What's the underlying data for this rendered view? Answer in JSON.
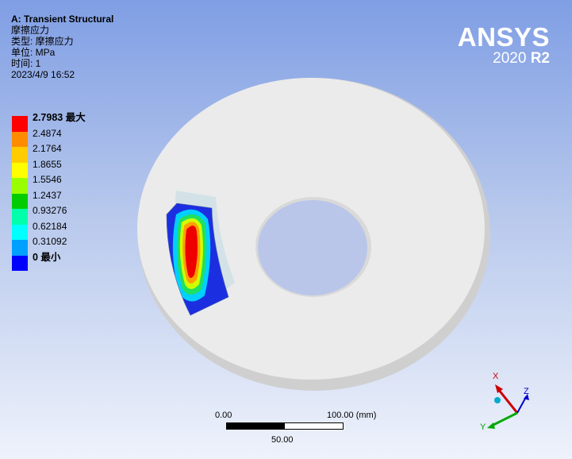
{
  "info": {
    "title": "A: Transient Structural",
    "result_name": "摩擦应力",
    "type_line": "类型: 摩擦应力",
    "unit_line": "单位: MPa",
    "time_line": "时间: 1",
    "date": "2023/4/9 16:52"
  },
  "legend": {
    "items": [
      {
        "label": "2.7983 最大",
        "color": "#ff0000",
        "strong": true
      },
      {
        "label": "2.4874",
        "color": "#ff8c00",
        "strong": false
      },
      {
        "label": "2.1764",
        "color": "#ffcc00",
        "strong": false
      },
      {
        "label": "1.8655",
        "color": "#ffff00",
        "strong": false
      },
      {
        "label": "1.5546",
        "color": "#99ff00",
        "strong": false
      },
      {
        "label": "1.2437",
        "color": "#00cc00",
        "strong": false
      },
      {
        "label": "0.93276",
        "color": "#00ffaa",
        "strong": false
      },
      {
        "label": "0.62184",
        "color": "#00ffff",
        "strong": false
      },
      {
        "label": "0.31092",
        "color": "#00a0ff",
        "strong": false
      },
      {
        "label": "0 最小",
        "color": "#0000ff",
        "strong": true
      }
    ]
  },
  "brand": {
    "name": "ANSYS",
    "version": "2020",
    "release": "R2"
  },
  "scale_bar": {
    "left_label": "0.00",
    "right_label": "100.00 (mm)",
    "mid_label": "50.00"
  },
  "triad": {
    "x_label": "X",
    "y_label": "Y",
    "z_label": "Z",
    "x_color": "#cc0000",
    "y_color": "#00aa00",
    "z_color": "#0000cc",
    "origin_color": "#00aacc"
  },
  "colors": {
    "disc_face": "#ebebeb",
    "disc_edge": "#cfcfcf"
  }
}
